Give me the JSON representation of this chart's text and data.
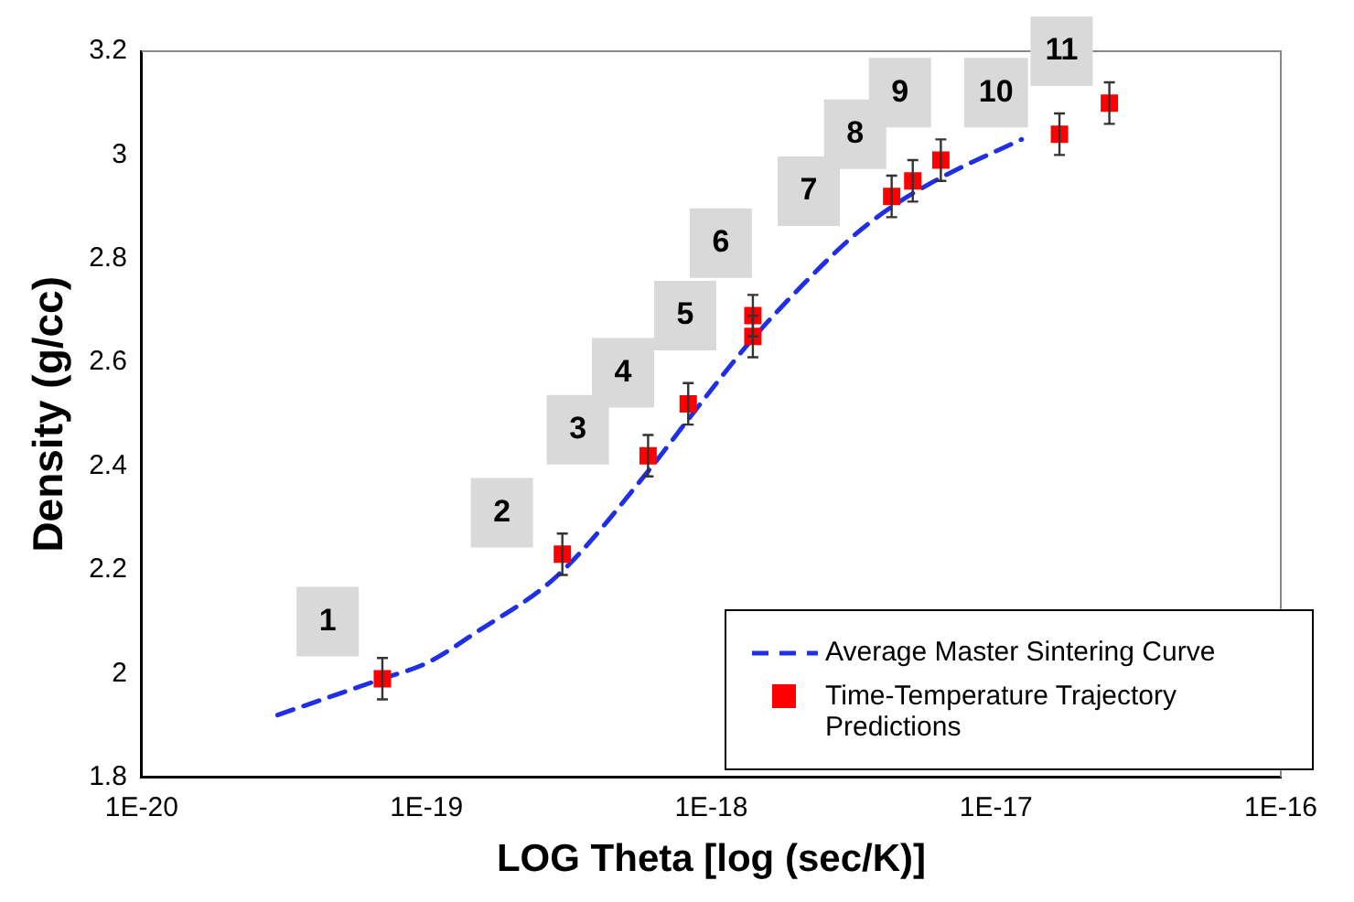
{
  "chart_data": {
    "type": "scatter",
    "xlabel": "LOG Theta [log (sec/K)]",
    "ylabel": "Density (g/cc)",
    "log": "x",
    "xlim": [
      1e-20,
      1e-16
    ],
    "xticks": [
      {
        "value": 1e-20,
        "label": "1E-20"
      },
      {
        "value": 1e-19,
        "label": "1E-19"
      },
      {
        "value": 1e-18,
        "label": "1E-18"
      },
      {
        "value": 1e-17,
        "label": "1E-17"
      },
      {
        "value": 1e-16,
        "label": "1E-16"
      }
    ],
    "ylim": [
      1.8,
      3.2
    ],
    "yticks": [
      1.8,
      2,
      2.2,
      2.4,
      2.6,
      2.8,
      3,
      3.2
    ],
    "grid": false,
    "legend": "bottom right",
    "series": [
      {
        "name": "Average Master Sintering Curve",
        "type": "line",
        "color": "#1f2fe6",
        "line_style": "dashed",
        "marker": "none",
        "x": [
          3e-20,
          7e-20,
          1e-19,
          1.5e-19,
          2.9e-19,
          6e-19,
          8.3e-19,
          1.37e-18,
          2.1e-18,
          3.1e-18,
          4.3e-18,
          6.6e-18,
          1.23e-17
        ],
        "values": [
          1.92,
          1.99,
          2.02,
          2.08,
          2.19,
          2.39,
          2.49,
          2.64,
          2.75,
          2.84,
          2.9,
          2.96,
          3.03
        ]
      },
      {
        "name": "Time-Temperature Trajectory Predictions",
        "color": "#ff0000",
        "marker": "square",
        "x": [
          7e-20,
          3e-19,
          6e-19,
          8.3e-19,
          1.4e-18,
          1.4e-18,
          4.3e-18,
          5.1e-18,
          6.4e-18,
          1.67e-17,
          2.5e-17
        ],
        "values": [
          1.99,
          2.23,
          2.42,
          2.52,
          2.65,
          2.69,
          2.92,
          2.95,
          2.99,
          3.04,
          3.1
        ],
        "errors": [
          0.04,
          0.04,
          0.04,
          0.04,
          0.04,
          0.04,
          0.04,
          0.04,
          0.04,
          0.04,
          0.04
        ]
      }
    ],
    "annotations": [
      {
        "text": "1",
        "x": 4.5e-20,
        "y": 2.1
      },
      {
        "text": "2",
        "x": 1.84e-19,
        "y": 2.31
      },
      {
        "text": "3",
        "x": 3.4e-19,
        "y": 2.47
      },
      {
        "text": "4",
        "x": 4.9e-19,
        "y": 2.58
      },
      {
        "text": "5",
        "x": 8.1e-19,
        "y": 2.69
      },
      {
        "text": "6",
        "x": 1.08e-18,
        "y": 2.83
      },
      {
        "text": "7",
        "x": 2.2e-18,
        "y": 2.93
      },
      {
        "text": "8",
        "x": 3.2e-18,
        "y": 3.04
      },
      {
        "text": "9",
        "x": 4.6e-18,
        "y": 3.12
      },
      {
        "text": "10",
        "x": 1e-17,
        "y": 3.12
      },
      {
        "text": "11",
        "x": 1.7e-17,
        "y": 3.2
      }
    ]
  }
}
